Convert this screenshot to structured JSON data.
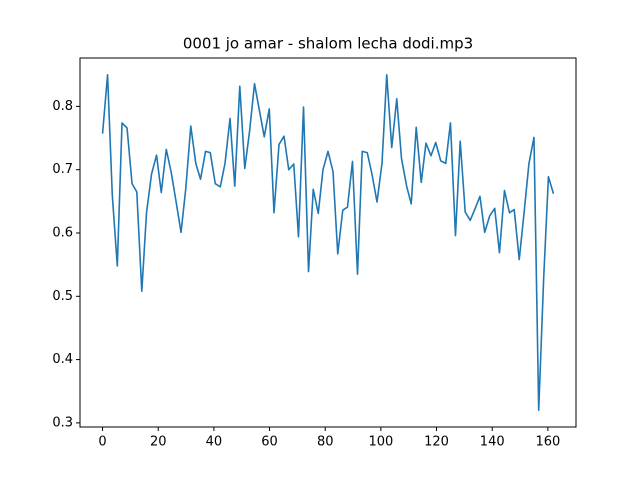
{
  "chart_data": {
    "type": "line",
    "title": "0001 jo amar - shalom lecha dodi.mp3",
    "x": [
      0,
      1.8,
      3.5,
      5.3,
      7.0,
      8.8,
      10.6,
      12.3,
      14.1,
      15.8,
      17.6,
      19.4,
      21.1,
      22.9,
      24.7,
      26.4,
      28.2,
      29.9,
      31.7,
      33.5,
      35.2,
      37.0,
      38.7,
      40.5,
      42.3,
      44.0,
      45.8,
      47.5,
      49.3,
      51.1,
      52.8,
      54.6,
      56.3,
      58.1,
      59.9,
      61.6,
      63.4,
      65.2,
      66.9,
      68.7,
      70.4,
      72.2,
      74.0,
      75.7,
      77.5,
      79.2,
      81.0,
      82.8,
      84.5,
      86.3,
      88.0,
      89.8,
      91.6,
      93.3,
      95.1,
      96.8,
      98.6,
      100.4,
      102.1,
      103.9,
      105.7,
      107.4,
      109.2,
      110.9,
      112.7,
      114.5,
      116.2,
      118.0,
      119.7,
      121.5,
      123.3,
      125.0,
      126.8,
      128.5,
      130.3,
      132.1,
      133.8,
      135.6,
      137.3,
      139.1,
      140.9,
      142.6,
      144.4,
      146.2,
      147.9,
      149.7,
      151.4,
      153.2,
      155.0,
      156.7,
      158.5,
      160.2,
      162.0
    ],
    "series": [
      {
        "color": "#1f77b4",
        "values": [
          0.757,
          0.85,
          0.66,
          0.548,
          0.774,
          0.766,
          0.678,
          0.665,
          0.508,
          0.632,
          0.693,
          0.723,
          0.664,
          0.732,
          0.695,
          0.65,
          0.601,
          0.67,
          0.769,
          0.71,
          0.685,
          0.729,
          0.727,
          0.678,
          0.673,
          0.71,
          0.781,
          0.674,
          0.832,
          0.702,
          0.76,
          0.836,
          0.795,
          0.752,
          0.796,
          0.632,
          0.74,
          0.753,
          0.7,
          0.709,
          0.594,
          0.799,
          0.539,
          0.669,
          0.631,
          0.7,
          0.729,
          0.697,
          0.567,
          0.636,
          0.641,
          0.713,
          0.535,
          0.729,
          0.727,
          0.693,
          0.649,
          0.71,
          0.85,
          0.735,
          0.812,
          0.718,
          0.675,
          0.646,
          0.767,
          0.68,
          0.742,
          0.722,
          0.743,
          0.714,
          0.71,
          0.774,
          0.596,
          0.745,
          0.633,
          0.62,
          0.638,
          0.658,
          0.601,
          0.627,
          0.639,
          0.569,
          0.667,
          0.632,
          0.637,
          0.558,
          0.63,
          0.71,
          0.751,
          0.32,
          0.53,
          0.689,
          0.662
        ]
      }
    ],
    "xlim": [
      -8.1,
      170.1
    ],
    "ylim": [
      0.2935,
      0.8765
    ],
    "xticks": [
      0,
      20,
      40,
      60,
      80,
      100,
      120,
      140,
      160
    ],
    "yticks": [
      0.3,
      0.4,
      0.5,
      0.6,
      0.7,
      0.8
    ]
  }
}
